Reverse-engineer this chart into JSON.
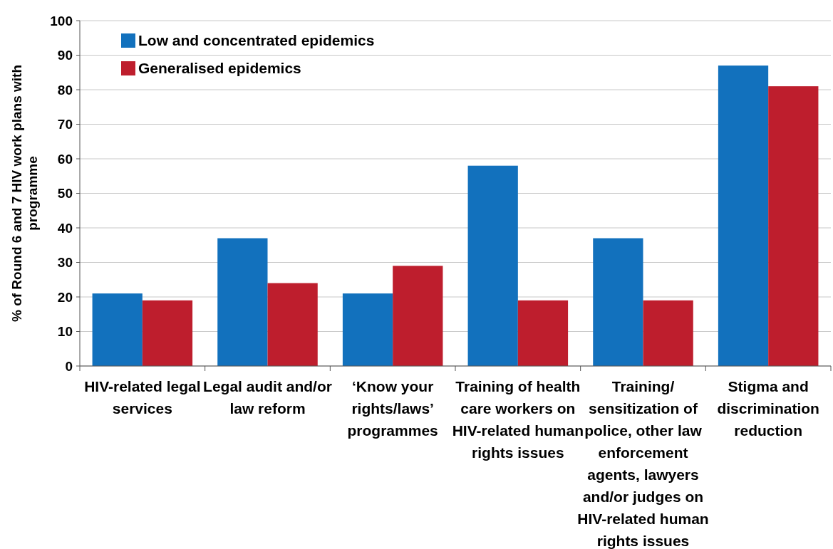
{
  "chart_data": {
    "type": "bar",
    "ylabel": "% of  Round 6 and 7 HIV work plans with programme",
    "categories": [
      "HIV-related legal services",
      "Legal audit and/or law reform",
      "‘Know your rights/laws’ programmes",
      "Training of health care workers on HIV-related human rights issues",
      "Training/ sensitization of police, other law enforcement agents, lawyers and/or judges on HIV-related human rights issues",
      "Stigma and discrimination reduction"
    ],
    "series": [
      {
        "name": "Low and concentrated epidemics",
        "color": "#1271bd",
        "values": [
          21,
          37,
          21,
          58,
          37,
          87
        ]
      },
      {
        "name": "Generalised epidemics",
        "color": "#be1e2d",
        "values": [
          19,
          24,
          29,
          19,
          19,
          81
        ]
      }
    ],
    "ylim": [
      0,
      100
    ],
    "yticks": [
      0,
      10,
      20,
      30,
      40,
      50,
      60,
      70,
      80,
      90,
      100
    ],
    "grid": "y",
    "legend": "top left"
  }
}
